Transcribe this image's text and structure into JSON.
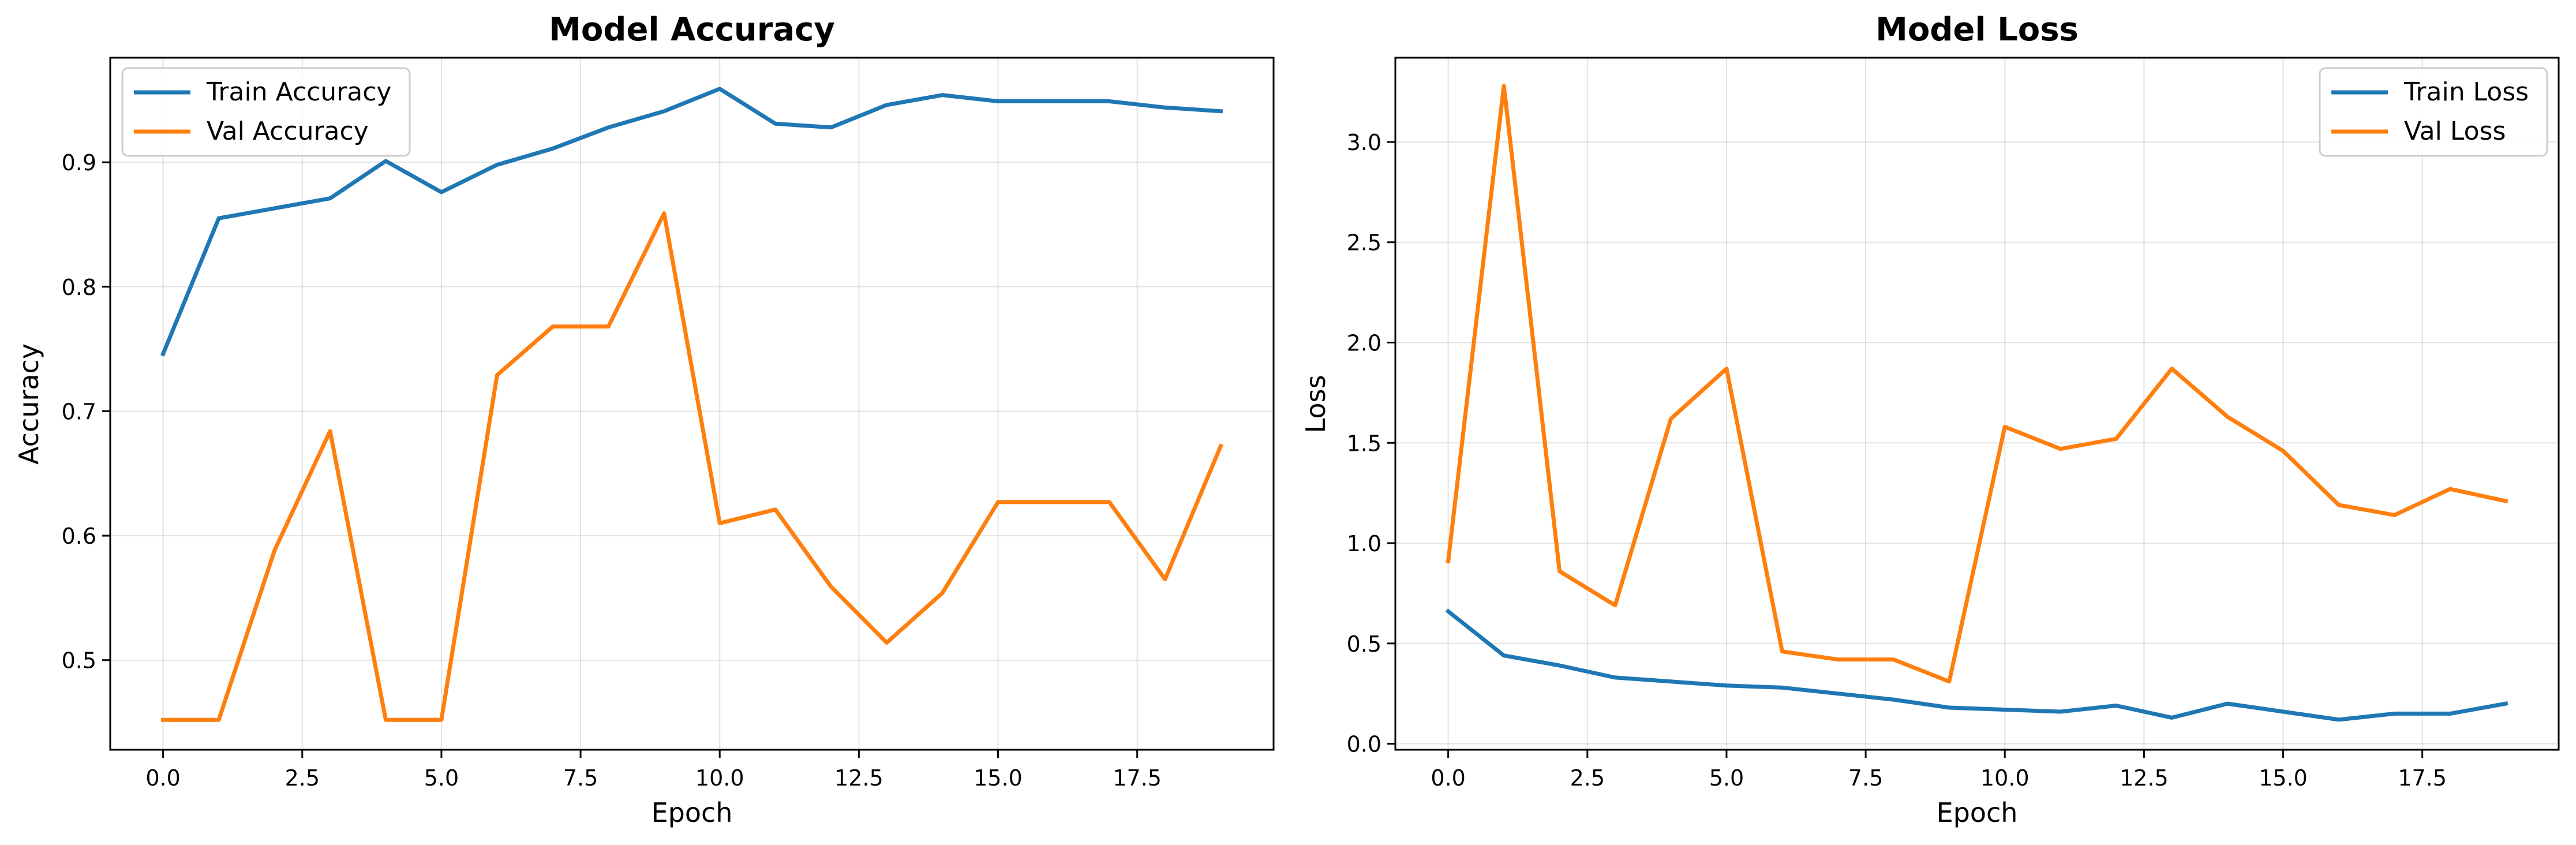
{
  "chart_data": [
    {
      "type": "line",
      "title": "Model Accuracy",
      "xlabel": "Epoch",
      "ylabel": "Accuracy",
      "x": [
        0,
        1,
        2,
        3,
        4,
        5,
        6,
        7,
        8,
        9,
        10,
        11,
        12,
        13,
        14,
        15,
        16,
        17,
        18,
        19
      ],
      "xlim": [
        -0.95,
        19.95
      ],
      "ylim": [
        0.428,
        0.984
      ],
      "xticks": [
        0.0,
        2.5,
        5.0,
        7.5,
        10.0,
        12.5,
        15.0,
        17.5
      ],
      "xtick_labels": [
        "0.0",
        "2.5",
        "5.0",
        "7.5",
        "10.0",
        "12.5",
        "15.0",
        "17.5"
      ],
      "yticks": [
        0.5,
        0.6,
        0.7,
        0.8,
        0.9
      ],
      "ytick_labels": [
        "0.5",
        "0.6",
        "0.7",
        "0.8",
        "0.9"
      ],
      "grid": true,
      "legend_position": "upper left",
      "series": [
        {
          "name": "Train Accuracy",
          "color": "#1f77b4",
          "values": [
            0.746,
            0.855,
            0.863,
            0.871,
            0.901,
            0.876,
            0.898,
            0.911,
            0.928,
            0.941,
            0.959,
            0.931,
            0.928,
            0.946,
            0.954,
            0.949,
            0.949,
            0.949,
            0.944,
            0.941
          ]
        },
        {
          "name": "Val Accuracy",
          "color": "#ff7f0e",
          "values": [
            0.452,
            0.452,
            0.588,
            0.684,
            0.452,
            0.452,
            0.729,
            0.768,
            0.768,
            0.859,
            0.61,
            0.621,
            0.559,
            0.514,
            0.554,
            0.627,
            0.627,
            0.627,
            0.565,
            0.672
          ]
        }
      ]
    },
    {
      "type": "line",
      "title": "Model Loss",
      "xlabel": "Epoch",
      "ylabel": "Loss",
      "x": [
        0,
        1,
        2,
        3,
        4,
        5,
        6,
        7,
        8,
        9,
        10,
        11,
        12,
        13,
        14,
        15,
        16,
        17,
        18,
        19
      ],
      "xlim": [
        -0.95,
        19.95
      ],
      "ylim": [
        -0.03,
        3.42
      ],
      "xticks": [
        0.0,
        2.5,
        5.0,
        7.5,
        10.0,
        12.5,
        15.0,
        17.5
      ],
      "xtick_labels": [
        "0.0",
        "2.5",
        "5.0",
        "7.5",
        "10.0",
        "12.5",
        "15.0",
        "17.5"
      ],
      "yticks": [
        0.0,
        0.5,
        1.0,
        1.5,
        2.0,
        2.5,
        3.0
      ],
      "ytick_labels": [
        "0.0",
        "0.5",
        "1.0",
        "1.5",
        "2.0",
        "2.5",
        "3.0"
      ],
      "grid": true,
      "legend_position": "upper right",
      "series": [
        {
          "name": "Train Loss",
          "color": "#1f77b4",
          "values": [
            0.66,
            0.44,
            0.39,
            0.33,
            0.31,
            0.29,
            0.28,
            0.25,
            0.22,
            0.18,
            0.17,
            0.16,
            0.19,
            0.13,
            0.2,
            0.16,
            0.12,
            0.15,
            0.15,
            0.2
          ]
        },
        {
          "name": "Val Loss",
          "color": "#ff7f0e",
          "values": [
            0.91,
            3.28,
            0.86,
            0.69,
            1.62,
            1.87,
            0.46,
            0.42,
            0.42,
            0.31,
            1.58,
            1.47,
            1.52,
            1.87,
            1.63,
            1.46,
            1.19,
            1.14,
            1.27,
            1.21
          ]
        }
      ]
    }
  ]
}
